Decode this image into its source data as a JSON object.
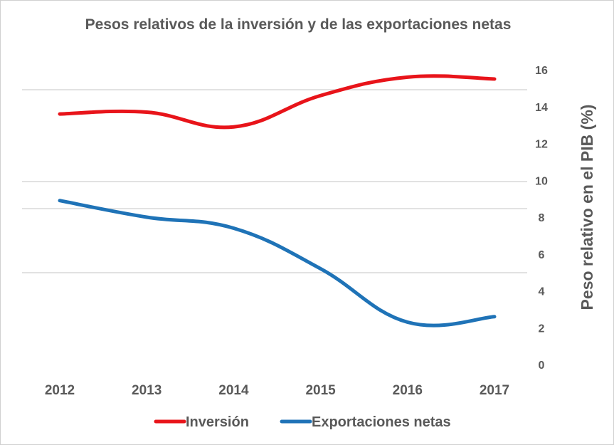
{
  "chart_data": {
    "type": "line",
    "title": "Pesos relativos de la inversión y de las exportaciones netas",
    "categories": [
      "2012",
      "2013",
      "2014",
      "2015",
      "2016",
      "2017"
    ],
    "xlabel": "",
    "ylabel": "Peso relativo en el PIB (%)",
    "ylim": [
      0,
      16
    ],
    "yticks": [
      0,
      2,
      4,
      6,
      8,
      10,
      12,
      14,
      16
    ],
    "y_axis_position": "right",
    "legend_position": "bottom",
    "series": [
      {
        "name": "Inversión",
        "color": "#e8141a",
        "values": [
          13.6,
          13.7,
          12.9,
          14.6,
          15.6,
          15.5
        ]
      },
      {
        "name": "Exportaciones netas",
        "color": "#1f73b7",
        "values": [
          8.9,
          8.0,
          7.4,
          5.2,
          2.3,
          2.6
        ]
      }
    ]
  }
}
